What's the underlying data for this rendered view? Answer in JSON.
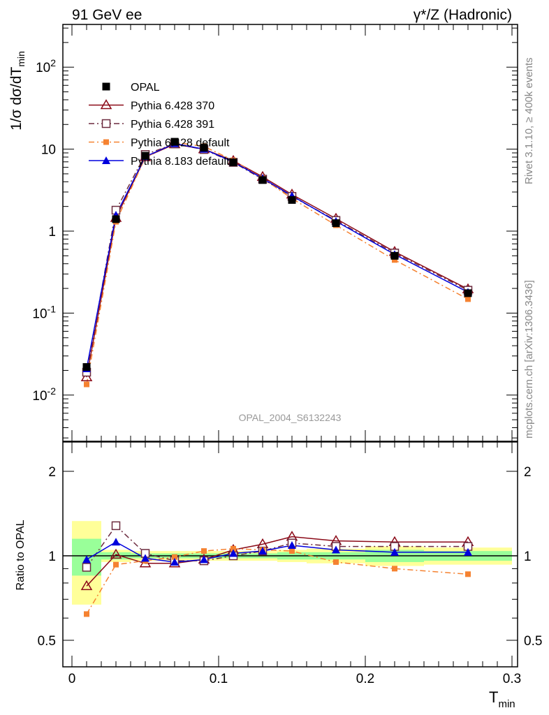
{
  "header": {
    "left": "91 GeV ee",
    "right": "γ*/Z (Hadronic)"
  },
  "side_labels": {
    "rivet": "Rivet 3.1.10, ≥ 400k events",
    "mcplots": "mcplots.cern.ch [arXiv:1306.3436]"
  },
  "watermark": "OPAL_2004_S6132243",
  "colors": {
    "opal": "#000000",
    "p6_370": "#8b0a18",
    "p6_391": "#6b2a3e",
    "p6_default": "#f58231",
    "p8_default": "#0000dd",
    "band_inner": "#99ff99",
    "band_outer": "#ffff99"
  },
  "chart_data": [
    {
      "type": "scatter",
      "panel": "main",
      "y_scale": "log",
      "ylabel": "1/σ dσ/dT_min",
      "ylim": [
        0.003,
        350
      ],
      "xlim": [
        -0.005,
        0.3
      ],
      "y_tick_labels": [
        "10^-2",
        "10^-1",
        "1",
        "10",
        "10^2"
      ],
      "legend_position": "top-left",
      "x": [
        0.01,
        0.03,
        0.05,
        0.07,
        0.09,
        0.11,
        0.13,
        0.15,
        0.18,
        0.22,
        0.27
      ],
      "series": [
        {
          "name": "OPAL",
          "key": "opal",
          "marker": "filled-square",
          "line": "none",
          "values": [
            0.022,
            1.4,
            8.3,
            12.3,
            10.4,
            6.9,
            4.2,
            2.4,
            1.25,
            0.5,
            0.175
          ]
        },
        {
          "name": "Pythia 6.428 370",
          "key": "p6_370",
          "marker": "open-triangle",
          "line": "solid",
          "values": [
            0.0165,
            1.45,
            8.0,
            11.5,
            10.0,
            7.2,
            4.6,
            2.8,
            1.42,
            0.56,
            0.196
          ]
        },
        {
          "name": "Pythia 6.428 391",
          "key": "p6_391",
          "marker": "open-square",
          "line": "dash-dot",
          "values": [
            0.019,
            1.8,
            8.6,
            11.6,
            9.9,
            6.9,
            4.3,
            2.65,
            1.35,
            0.54,
            0.19
          ]
        },
        {
          "name": "Pythia 6.428 default",
          "key": "p6_default",
          "marker": "small-filled-square",
          "line": "dash-dot",
          "values": [
            0.0135,
            1.3,
            7.9,
            12.1,
            10.8,
            7.3,
            4.4,
            2.5,
            1.18,
            0.445,
            0.148
          ]
        },
        {
          "name": "Pythia 8.183 default",
          "key": "p8_default",
          "marker": "filled-triangle",
          "line": "solid",
          "values": [
            0.021,
            1.57,
            8.1,
            11.7,
            10.0,
            7.0,
            4.4,
            2.7,
            1.32,
            0.52,
            0.18
          ]
        }
      ]
    },
    {
      "type": "scatter",
      "panel": "ratio",
      "ylabel": "Ratio to OPAL",
      "xlabel": "T_min",
      "ylim": [
        0.35,
        2.3
      ],
      "xlim": [
        -0.005,
        0.3
      ],
      "y_tick_labels": [
        "0.5",
        "1",
        "2"
      ],
      "x_tick_labels": [
        "0",
        "0.1",
        "0.2",
        "0.3"
      ],
      "bands": {
        "x_edges": [
          0.0,
          0.02,
          0.04,
          0.06,
          0.08,
          0.1,
          0.12,
          0.14,
          0.16,
          0.2,
          0.24,
          0.3
        ],
        "inner": [
          0.15,
          0.03,
          0.02,
          0.02,
          0.02,
          0.02,
          0.02,
          0.03,
          0.03,
          0.05,
          0.04
        ],
        "outer": [
          0.33,
          0.05,
          0.04,
          0.04,
          0.04,
          0.04,
          0.04,
          0.05,
          0.06,
          0.08,
          0.07
        ]
      },
      "x": [
        0.01,
        0.03,
        0.05,
        0.07,
        0.09,
        0.11,
        0.13,
        0.15,
        0.18,
        0.22,
        0.27
      ],
      "series": [
        {
          "name": "Pythia 6.428 370",
          "key": "p6_370",
          "marker": "open-triangle",
          "line": "solid",
          "values": [
            0.78,
            1.01,
            0.94,
            0.94,
            0.97,
            1.05,
            1.1,
            1.17,
            1.13,
            1.12,
            1.12
          ]
        },
        {
          "name": "Pythia 6.428 391",
          "key": "p6_391",
          "marker": "open-square",
          "line": "dash-dot",
          "values": [
            0.91,
            1.28,
            1.02,
            0.96,
            0.96,
            1.0,
            1.04,
            1.11,
            1.08,
            1.08,
            1.08
          ]
        },
        {
          "name": "Pythia 6.428 default",
          "key": "p6_default",
          "marker": "small-filled-square",
          "line": "dash-dot",
          "values": [
            0.62,
            0.93,
            0.96,
            0.99,
            1.04,
            1.06,
            1.05,
            1.04,
            0.95,
            0.9,
            0.86
          ]
        },
        {
          "name": "Pythia 8.183 default",
          "key": "p8_default",
          "marker": "filled-triangle",
          "line": "solid",
          "values": [
            0.97,
            1.12,
            0.98,
            0.95,
            0.97,
            1.02,
            1.04,
            1.09,
            1.05,
            1.03,
            1.03
          ]
        }
      ]
    }
  ]
}
